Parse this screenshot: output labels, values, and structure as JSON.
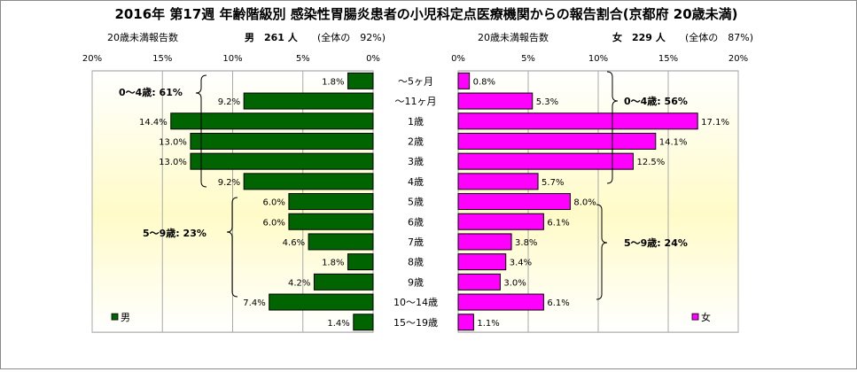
{
  "title": "2016年 第17週 年齢階級別 感染性胃腸炎患者の小児科定点医療機関からの報告割合(京都府 20歳未満)",
  "left_subtitle": {
    "label": "20歳未満報告数",
    "sex": "男",
    "count": "261 人",
    "share": "(全体の　92%)"
  },
  "right_subtitle": {
    "label": "20歳未満報告数",
    "sex": "女",
    "count": "229 人",
    "share": "(全体の　87%)"
  },
  "brackets": {
    "male_0_4": "0～4歳: 61%",
    "male_5_9": "5～9歳: 23%",
    "female_0_4": "0～4歳: 56%",
    "female_5_9": "5～9歳: 24%"
  },
  "chart_data": [
    {
      "type": "bar",
      "orientation": "horizontal",
      "direction": "right-to-left",
      "categories": [
        "～5ヶ月",
        "～11ヶ月",
        "1歳",
        "2歳",
        "3歳",
        "4歳",
        "5歳",
        "6歳",
        "7歳",
        "8歳",
        "9歳",
        "10～14歳",
        "15～19歳"
      ],
      "series": [
        {
          "name": "男",
          "color": "#006400",
          "values": [
            1.8,
            9.2,
            14.4,
            13.0,
            13.0,
            9.2,
            6.0,
            6.0,
            4.6,
            1.8,
            4.2,
            7.4,
            1.4
          ],
          "labels": [
            "1.8%",
            "9.2%",
            "14.4%",
            "13.0%",
            "13.0%",
            "9.2%",
            "6.0%",
            "6.0%",
            "4.6%",
            "1.8%",
            "4.2%",
            "7.4%",
            "1.4%"
          ]
        }
      ],
      "xlim": [
        0,
        20
      ],
      "xticks": [
        "20%",
        "15%",
        "10%",
        "5%",
        "0%"
      ],
      "grid": true,
      "legend": "bottom-left"
    },
    {
      "type": "bar",
      "orientation": "horizontal",
      "direction": "left-to-right",
      "categories": [
        "～5ヶ月",
        "～11ヶ月",
        "1歳",
        "2歳",
        "3歳",
        "4歳",
        "5歳",
        "6歳",
        "7歳",
        "8歳",
        "9歳",
        "10～14歳",
        "15～19歳"
      ],
      "series": [
        {
          "name": "女",
          "color": "#ff00ff",
          "values": [
            0.8,
            5.3,
            17.1,
            14.1,
            12.5,
            5.7,
            8.0,
            6.1,
            3.8,
            3.4,
            3.0,
            6.1,
            1.1
          ],
          "labels": [
            "0.8%",
            "5.3%",
            "17.1%",
            "14.1%",
            "12.5%",
            "5.7%",
            "8.0%",
            "6.1%",
            "3.8%",
            "3.4%",
            "3.0%",
            "6.1%",
            "1.1%"
          ]
        }
      ],
      "xlim": [
        0,
        20
      ],
      "xticks": [
        "0%",
        "5%",
        "10%",
        "15%",
        "20%"
      ],
      "grid": true,
      "legend": "bottom-right"
    }
  ]
}
